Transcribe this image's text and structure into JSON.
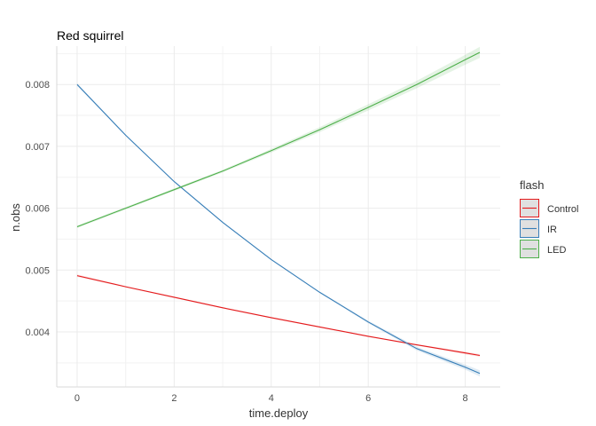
{
  "chart_data": {
    "type": "line",
    "title": "Red squirrel",
    "xlabel": "time.deploy",
    "ylabel": "n.obs",
    "xlim": [
      -0.42,
      8.72
    ],
    "ylim": [
      0.00311,
      0.00862
    ],
    "x_ticks": [
      0,
      2,
      4,
      6,
      8
    ],
    "x_tick_labels": [
      "0",
      "2",
      "4",
      "6",
      "8"
    ],
    "y_ticks": [
      0.004,
      0.005,
      0.006,
      0.007,
      0.008
    ],
    "y_tick_labels": [
      "0.004",
      "0.005",
      "0.006",
      "0.007",
      "0.008"
    ],
    "grid": true,
    "legend": {
      "title": "flash",
      "position": "right"
    },
    "series": [
      {
        "name": "Control",
        "color": "#e41a1c",
        "x": [
          0,
          1,
          2,
          3,
          4,
          5,
          6,
          7,
          8,
          8.3
        ],
        "y": [
          0.00491,
          0.00473,
          0.00456,
          0.00439,
          0.00423,
          0.00408,
          0.00393,
          0.00379,
          0.00366,
          0.00362
        ],
        "ci_half": [
          2e-05,
          1e-05,
          1e-05,
          1e-05,
          1e-05,
          1e-05,
          1e-05,
          1e-05,
          2e-05,
          2e-05
        ]
      },
      {
        "name": "IR",
        "color": "#377eb8",
        "x": [
          0,
          1,
          2,
          3,
          4,
          5,
          6,
          7,
          8,
          8.3
        ],
        "y": [
          0.008,
          0.00718,
          0.00643,
          0.00577,
          0.00517,
          0.00464,
          0.00416,
          0.00373,
          0.00343,
          0.00333
        ],
        "ci_half": [
          2e-05,
          1e-05,
          1e-05,
          1e-05,
          1e-05,
          1e-05,
          2e-05,
          3e-05,
          4e-05,
          5e-05
        ]
      },
      {
        "name": "LED",
        "color": "#4daf4a",
        "x": [
          0,
          1,
          2,
          3,
          4,
          5,
          6,
          7,
          8,
          8.3
        ],
        "y": [
          0.0057,
          0.006,
          0.0063,
          0.0066,
          0.00693,
          0.00727,
          0.00763,
          0.008,
          0.0084,
          0.00852
        ],
        "ci_half": [
          2e-05,
          2e-05,
          2e-05,
          2e-05,
          3e-05,
          4e-05,
          5e-05,
          6e-05,
          8e-05,
          9e-05
        ]
      }
    ]
  }
}
